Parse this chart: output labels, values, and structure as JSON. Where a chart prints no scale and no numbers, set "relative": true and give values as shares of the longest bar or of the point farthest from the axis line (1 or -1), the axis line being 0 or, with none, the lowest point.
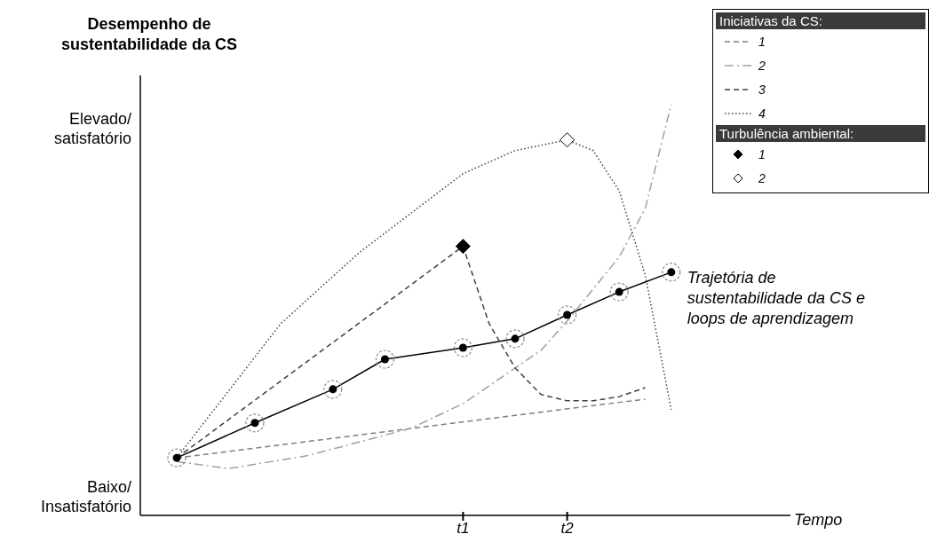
{
  "chart_data": {
    "type": "line",
    "relative": true,
    "ylabel": "Desempenho de sustentabilidade da CS",
    "legend_title": "Iniciativas da CS:",
    "annotations": [
      "Turbulência ambiental:",
      "Baixo/Insatisfatório",
      "Elevado/satisfatório",
      "Tempo"
    ],
    "legend": "top right",
    "categories": [
      null,
      null,
      null,
      null,
      null,
      null,
      null,
      null,
      null,
      null,
      null,
      "t1",
      null,
      null,
      null,
      "t2",
      null,
      null,
      null,
      null
    ],
    "series": [
      {
        "name": "Trajetória de sustentabilidade da CS e loops de aprendizagem",
        "color": "#000000",
        "line_style": "solid",
        "marker": "circle",
        "values": [
          0.14,
          null,
          null,
          0.225,
          null,
          null,
          0.307,
          null,
          0.38,
          null,
          null,
          0.408,
          null,
          0.43,
          null,
          0.488,
          null,
          0.544,
          null,
          0.592
        ]
      },
      {
        "name": "1",
        "color": "#7f7f7f",
        "line_style": "dashed",
        "values": [
          0.14,
          null,
          null,
          null,
          null,
          null,
          null,
          null,
          null,
          null,
          null,
          null,
          null,
          null,
          null,
          null,
          null,
          null,
          0.283,
          null
        ]
      },
      {
        "name": "2",
        "color": "#a0a0a0",
        "line_style": "dashdot",
        "values": [
          0.131,
          null,
          0.114,
          null,
          null,
          0.145,
          null,
          null,
          null,
          0.212,
          null,
          0.272,
          null,
          null,
          0.402,
          0.473,
          null,
          0.629,
          0.747,
          1
        ]
      },
      {
        "name": "3",
        "color": "#404040",
        "line_style": "dashed",
        "values": [
          0.14,
          null,
          null,
          null,
          null,
          null,
          null,
          null,
          null,
          null,
          null,
          0.655,
          0.467,
          0.359,
          0.294,
          0.279,
          0.279,
          0.289,
          0.311,
          null
        ]
      },
      {
        "name": "4",
        "color": "#404040",
        "line_style": "dotted",
        "values": [
          0.14,
          null,
          null,
          null,
          0.467,
          null,
          null,
          0.639,
          null,
          null,
          null,
          0.832,
          null,
          0.888,
          null,
          0.914,
          0.888,
          0.79,
          0.585,
          0.257
        ]
      },
      {
        "name": "1",
        "type": "scatter",
        "color": "#000000",
        "marker": "diamond",
        "values": [
          null,
          null,
          null,
          null,
          null,
          null,
          null,
          null,
          null,
          null,
          null,
          0.655,
          null,
          null,
          null,
          null,
          null,
          null,
          null,
          null
        ]
      },
      {
        "name": "2",
        "type": "scatter",
        "color": "#ffffff",
        "marker": "diamond",
        "values": [
          null,
          null,
          null,
          null,
          null,
          null,
          null,
          null,
          null,
          null,
          null,
          null,
          null,
          null,
          null,
          0.914,
          null,
          null,
          null,
          null
        ]
      }
    ]
  }
}
